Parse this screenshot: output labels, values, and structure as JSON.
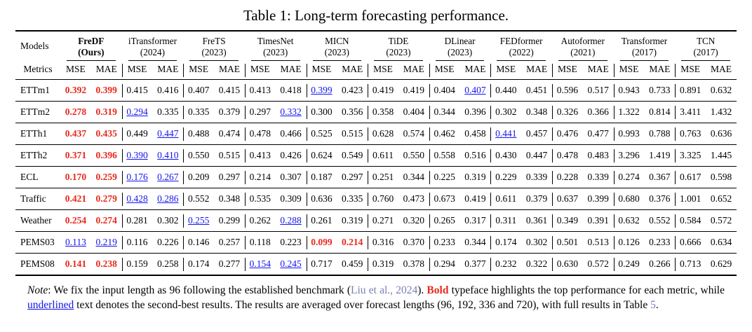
{
  "title": "Table 1: Long-term forecasting performance.",
  "colors": {
    "best_red": "#e8291c",
    "second_blue": "#1414ee",
    "citation": "#7b7db8",
    "text": "#000000"
  },
  "table": {
    "models_label": "Models",
    "metrics_label": "Metrics",
    "metric_headers": [
      "MSE",
      "MAE"
    ],
    "models": [
      {
        "name": "FreDF",
        "year": "(Ours)",
        "bold": true
      },
      {
        "name": "iTransformer",
        "year": "(2024)",
        "bold": false
      },
      {
        "name": "FreTS",
        "year": "(2023)",
        "bold": false
      },
      {
        "name": "TimesNet",
        "year": "(2023)",
        "bold": false
      },
      {
        "name": "MICN",
        "year": "(2023)",
        "bold": false
      },
      {
        "name": "TiDE",
        "year": "(2023)",
        "bold": false
      },
      {
        "name": "DLinear",
        "year": "(2023)",
        "bold": false
      },
      {
        "name": "FEDformer",
        "year": "(2022)",
        "bold": false
      },
      {
        "name": "Autoformer",
        "year": "(2021)",
        "bold": false
      },
      {
        "name": "Transformer",
        "year": "(2017)",
        "bold": false
      },
      {
        "name": "TCN",
        "year": "(2017)",
        "bold": false
      }
    ],
    "style_legend": {
      "b": "best (bold red)",
      "u": "second-best (blue underline)"
    },
    "rows": [
      {
        "dataset": "ETTm1",
        "values": [
          [
            "0.392",
            "b"
          ],
          [
            "0.399",
            "b"
          ],
          [
            "0.415"
          ],
          [
            "0.416"
          ],
          [
            "0.407"
          ],
          [
            "0.415"
          ],
          [
            "0.413"
          ],
          [
            "0.418"
          ],
          [
            "0.399",
            "u"
          ],
          [
            "0.423"
          ],
          [
            "0.419"
          ],
          [
            "0.419"
          ],
          [
            "0.404"
          ],
          [
            "0.407",
            "u"
          ],
          [
            "0.440"
          ],
          [
            "0.451"
          ],
          [
            "0.596"
          ],
          [
            "0.517"
          ],
          [
            "0.943"
          ],
          [
            "0.733"
          ],
          [
            "0.891"
          ],
          [
            "0.632"
          ]
        ]
      },
      {
        "dataset": "ETTm2",
        "values": [
          [
            "0.278",
            "b"
          ],
          [
            "0.319",
            "b"
          ],
          [
            "0.294",
            "u"
          ],
          [
            "0.335"
          ],
          [
            "0.335"
          ],
          [
            "0.379"
          ],
          [
            "0.297"
          ],
          [
            "0.332",
            "u"
          ],
          [
            "0.300"
          ],
          [
            "0.356"
          ],
          [
            "0.358"
          ],
          [
            "0.404"
          ],
          [
            "0.344"
          ],
          [
            "0.396"
          ],
          [
            "0.302"
          ],
          [
            "0.348"
          ],
          [
            "0.326"
          ],
          [
            "0.366"
          ],
          [
            "1.322"
          ],
          [
            "0.814"
          ],
          [
            "3.411"
          ],
          [
            "1.432"
          ]
        ]
      },
      {
        "dataset": "ETTh1",
        "values": [
          [
            "0.437",
            "b"
          ],
          [
            "0.435",
            "b"
          ],
          [
            "0.449"
          ],
          [
            "0.447",
            "u"
          ],
          [
            "0.488"
          ],
          [
            "0.474"
          ],
          [
            "0.478"
          ],
          [
            "0.466"
          ],
          [
            "0.525"
          ],
          [
            "0.515"
          ],
          [
            "0.628"
          ],
          [
            "0.574"
          ],
          [
            "0.462"
          ],
          [
            "0.458"
          ],
          [
            "0.441",
            "u"
          ],
          [
            "0.457"
          ],
          [
            "0.476"
          ],
          [
            "0.477"
          ],
          [
            "0.993"
          ],
          [
            "0.788"
          ],
          [
            "0.763"
          ],
          [
            "0.636"
          ]
        ]
      },
      {
        "dataset": "ETTh2",
        "values": [
          [
            "0.371",
            "b"
          ],
          [
            "0.396",
            "b"
          ],
          [
            "0.390",
            "u"
          ],
          [
            "0.410",
            "u"
          ],
          [
            "0.550"
          ],
          [
            "0.515"
          ],
          [
            "0.413"
          ],
          [
            "0.426"
          ],
          [
            "0.624"
          ],
          [
            "0.549"
          ],
          [
            "0.611"
          ],
          [
            "0.550"
          ],
          [
            "0.558"
          ],
          [
            "0.516"
          ],
          [
            "0.430"
          ],
          [
            "0.447"
          ],
          [
            "0.478"
          ],
          [
            "0.483"
          ],
          [
            "3.296"
          ],
          [
            "1.419"
          ],
          [
            "3.325"
          ],
          [
            "1.445"
          ]
        ]
      },
      {
        "dataset": "ECL",
        "values": [
          [
            "0.170",
            "b"
          ],
          [
            "0.259",
            "b"
          ],
          [
            "0.176",
            "u"
          ],
          [
            "0.267",
            "u"
          ],
          [
            "0.209"
          ],
          [
            "0.297"
          ],
          [
            "0.214"
          ],
          [
            "0.307"
          ],
          [
            "0.187"
          ],
          [
            "0.297"
          ],
          [
            "0.251"
          ],
          [
            "0.344"
          ],
          [
            "0.225"
          ],
          [
            "0.319"
          ],
          [
            "0.229"
          ],
          [
            "0.339"
          ],
          [
            "0.228"
          ],
          [
            "0.339"
          ],
          [
            "0.274"
          ],
          [
            "0.367"
          ],
          [
            "0.617"
          ],
          [
            "0.598"
          ]
        ]
      },
      {
        "dataset": "Traffic",
        "values": [
          [
            "0.421",
            "b"
          ],
          [
            "0.279",
            "b"
          ],
          [
            "0.428",
            "u"
          ],
          [
            "0.286",
            "u"
          ],
          [
            "0.552"
          ],
          [
            "0.348"
          ],
          [
            "0.535"
          ],
          [
            "0.309"
          ],
          [
            "0.636"
          ],
          [
            "0.335"
          ],
          [
            "0.760"
          ],
          [
            "0.473"
          ],
          [
            "0.673"
          ],
          [
            "0.419"
          ],
          [
            "0.611"
          ],
          [
            "0.379"
          ],
          [
            "0.637"
          ],
          [
            "0.399"
          ],
          [
            "0.680"
          ],
          [
            "0.376"
          ],
          [
            "1.001"
          ],
          [
            "0.652"
          ]
        ]
      },
      {
        "dataset": "Weather",
        "values": [
          [
            "0.254",
            "b"
          ],
          [
            "0.274",
            "b"
          ],
          [
            "0.281"
          ],
          [
            "0.302"
          ],
          [
            "0.255",
            "u"
          ],
          [
            "0.299"
          ],
          [
            "0.262"
          ],
          [
            "0.288",
            "u"
          ],
          [
            "0.261"
          ],
          [
            "0.319"
          ],
          [
            "0.271"
          ],
          [
            "0.320"
          ],
          [
            "0.265"
          ],
          [
            "0.317"
          ],
          [
            "0.311"
          ],
          [
            "0.361"
          ],
          [
            "0.349"
          ],
          [
            "0.391"
          ],
          [
            "0.632"
          ],
          [
            "0.552"
          ],
          [
            "0.584"
          ],
          [
            "0.572"
          ]
        ]
      },
      {
        "dataset": "PEMS03",
        "values": [
          [
            "0.113",
            "u"
          ],
          [
            "0.219",
            "u"
          ],
          [
            "0.116"
          ],
          [
            "0.226"
          ],
          [
            "0.146"
          ],
          [
            "0.257"
          ],
          [
            "0.118"
          ],
          [
            "0.223"
          ],
          [
            "0.099",
            "b"
          ],
          [
            "0.214",
            "b"
          ],
          [
            "0.316"
          ],
          [
            "0.370"
          ],
          [
            "0.233"
          ],
          [
            "0.344"
          ],
          [
            "0.174"
          ],
          [
            "0.302"
          ],
          [
            "0.501"
          ],
          [
            "0.513"
          ],
          [
            "0.126"
          ],
          [
            "0.233"
          ],
          [
            "0.666"
          ],
          [
            "0.634"
          ]
        ]
      },
      {
        "dataset": "PEMS08",
        "values": [
          [
            "0.141",
            "b"
          ],
          [
            "0.238",
            "b"
          ],
          [
            "0.159"
          ],
          [
            "0.258"
          ],
          [
            "0.174"
          ],
          [
            "0.277"
          ],
          [
            "0.154",
            "u"
          ],
          [
            "0.245",
            "u"
          ],
          [
            "0.717"
          ],
          [
            "0.459"
          ],
          [
            "0.319"
          ],
          [
            "0.378"
          ],
          [
            "0.294"
          ],
          [
            "0.377"
          ],
          [
            "0.232"
          ],
          [
            "0.322"
          ],
          [
            "0.630"
          ],
          [
            "0.572"
          ],
          [
            "0.249"
          ],
          [
            "0.266"
          ],
          [
            "0.713"
          ],
          [
            "0.629"
          ]
        ]
      }
    ]
  },
  "note": {
    "segments": [
      {
        "t": "Note",
        "style": "italic"
      },
      {
        "t": ": We fix the input length as 96 following the established benchmark ("
      },
      {
        "t": "Liu et al., 2024",
        "style": "cite",
        "interactable": true
      },
      {
        "t": "). "
      },
      {
        "t": "Bold",
        "style": "boldred"
      },
      {
        "t": " typeface highlights the top performance for each metric, while "
      },
      {
        "t": "underlined",
        "style": "ulink"
      },
      {
        "t": " text denotes the second-best results. The results are averaged over forecast lengths (96, 192, 336 and 720), with full results in Table "
      },
      {
        "t": "5",
        "style": "cite",
        "interactable": true
      },
      {
        "t": "."
      }
    ]
  }
}
